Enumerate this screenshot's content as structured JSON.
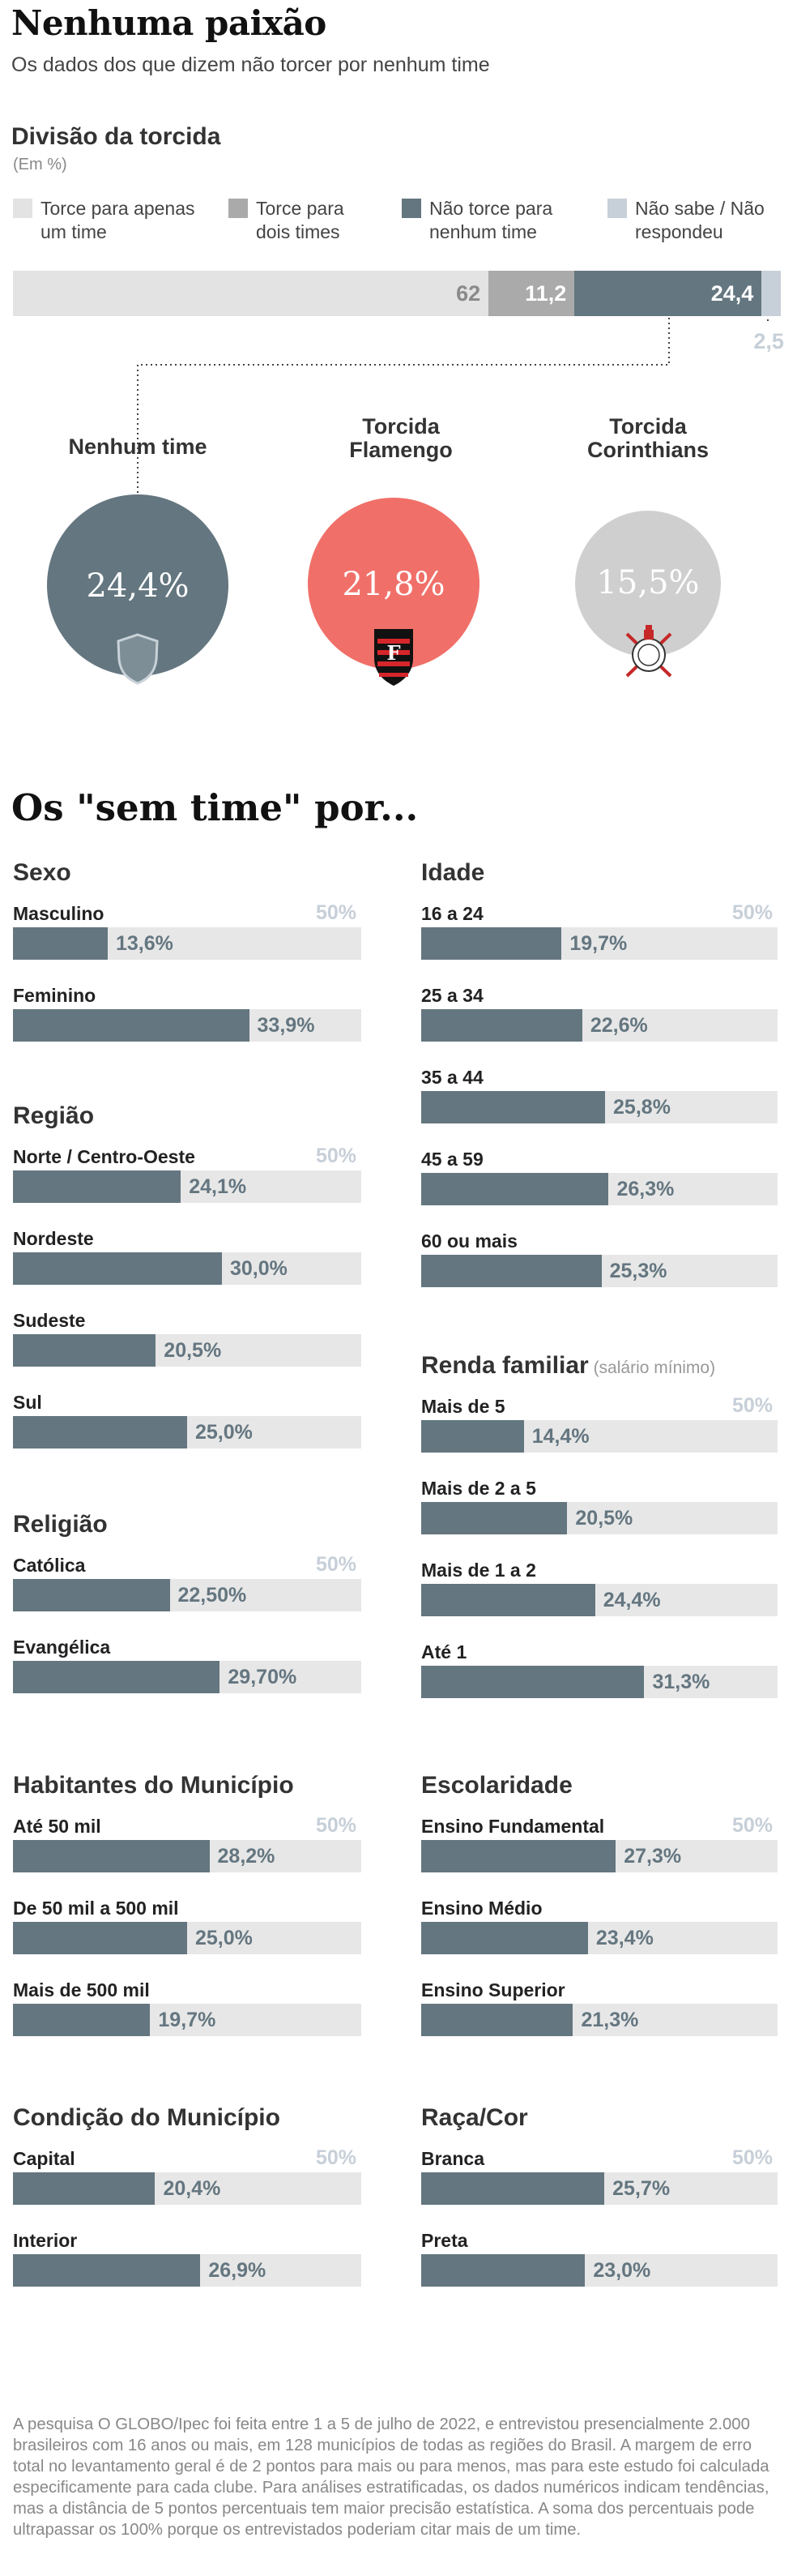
{
  "header": {
    "title": "Nenhuma paixão",
    "subtitle": "Os dados dos que dizem não torcer por nenhum time"
  },
  "division": {
    "title": "Divisão da torcida",
    "unit": "(Em %)",
    "legend": [
      {
        "label": "Torce para apenas um time",
        "color": "#e3e3e3"
      },
      {
        "label": "Torce para dois times",
        "color": "#aaaaaa"
      },
      {
        "label": "Não torce para nenhum time",
        "color": "#647680"
      },
      {
        "label": "Não sabe / Não respondeu",
        "color": "#c7d0d8"
      }
    ]
  },
  "circles": [
    {
      "label": "Nenhum time",
      "value": "24,4%",
      "color": "#647680",
      "icon": "shield-icon"
    },
    {
      "label": "Torcida Flamengo",
      "value": "21,8%",
      "color": "#f07069",
      "icon": "flamengo-crest-icon"
    },
    {
      "label": "Torcida Corinthians",
      "value": "15,5%",
      "color": "#cfcfcf",
      "icon": "corinthians-crest-icon"
    }
  ],
  "section_title": "Os \"sem time\" por...",
  "max_label": "50%",
  "groups": [
    {
      "title": "Sexo",
      "note": "",
      "rows": [
        {
          "label": "Masculino",
          "value": "13,6%"
        },
        {
          "label": "Feminino",
          "value": "33,9%"
        }
      ]
    },
    {
      "title": "Região",
      "note": "",
      "rows": [
        {
          "label": "Norte / Centro-Oeste",
          "value": "24,1%"
        },
        {
          "label": "Nordeste",
          "value": "30,0%"
        },
        {
          "label": "Sudeste",
          "value": "20,5%"
        },
        {
          "label": "Sul",
          "value": "25,0%"
        }
      ]
    },
    {
      "title": "Religião",
      "note": "",
      "rows": [
        {
          "label": "Católica",
          "value": "22,50%"
        },
        {
          "label": "Evangélica",
          "value": "29,70%"
        }
      ]
    },
    {
      "title": "Idade",
      "note": "",
      "rows": [
        {
          "label": "16 a 24",
          "value": "19,7%"
        },
        {
          "label": "25 a 34",
          "value": "22,6%"
        },
        {
          "label": "35 a 44",
          "value": "25,8%"
        },
        {
          "label": "45 a 59",
          "value": "26,3%"
        },
        {
          "label": "60 ou mais",
          "value": "25,3%"
        }
      ]
    },
    {
      "title": "Renda familiar",
      "note": "(salário mínimo)",
      "rows": [
        {
          "label": "Mais de 5",
          "value": "14,4%"
        },
        {
          "label": "Mais de 2 a 5",
          "value": "20,5%"
        },
        {
          "label": "Mais de 1 a 2",
          "value": "24,4%"
        },
        {
          "label": "Até 1",
          "value": "31,3%"
        }
      ]
    },
    {
      "title": "Habitantes do Município",
      "note": "",
      "rows": [
        {
          "label": "Até 50 mil",
          "value": "28,2%"
        },
        {
          "label": "De 50 mil a 500 mil",
          "value": "25,0%"
        },
        {
          "label": "Mais de 500 mil",
          "value": "19,7%"
        }
      ]
    },
    {
      "title": "Escolaridade",
      "note": "",
      "rows": [
        {
          "label": "Ensino Fundamental",
          "value": "27,3%"
        },
        {
          "label": "Ensino Médio",
          "value": "23,4%"
        },
        {
          "label": "Ensino Superior",
          "value": "21,3%"
        }
      ]
    },
    {
      "title": "Condição do Município",
      "note": "",
      "rows": [
        {
          "label": "Capital",
          "value": "20,4%"
        },
        {
          "label": "Interior",
          "value": "26,9%"
        }
      ]
    },
    {
      "title": "Raça/Cor",
      "note": "",
      "rows": [
        {
          "label": "Branca",
          "value": "25,7%"
        },
        {
          "label": "Preta",
          "value": "23,0%"
        }
      ]
    }
  ],
  "chart_data": [
    {
      "type": "bar",
      "title": "Divisão da torcida",
      "ylabel": "(Em %)",
      "stacked": true,
      "categories": [
        "Torce para apenas um time",
        "Torce para dois times",
        "Não torce para nenhum time",
        "Não sabe / Não respondeu"
      ],
      "values": [
        62,
        11.2,
        24.4,
        2.5
      ],
      "labels": [
        "62",
        "11,2",
        "24,4",
        "2,5"
      ]
    },
    {
      "type": "bar",
      "title": "Os \"sem time\" por... Sexo",
      "categories": [
        "Masculino",
        "Feminino"
      ],
      "values": [
        13.6,
        33.9
      ],
      "ylim": [
        0,
        50
      ]
    },
    {
      "type": "bar",
      "title": "Região",
      "categories": [
        "Norte / Centro-Oeste",
        "Nordeste",
        "Sudeste",
        "Sul"
      ],
      "values": [
        24.1,
        30.0,
        20.5,
        25.0
      ],
      "ylim": [
        0,
        50
      ]
    },
    {
      "type": "bar",
      "title": "Religião",
      "categories": [
        "Católica",
        "Evangélica"
      ],
      "values": [
        22.5,
        29.7
      ],
      "ylim": [
        0,
        50
      ]
    },
    {
      "type": "bar",
      "title": "Idade",
      "categories": [
        "16 a 24",
        "25 a 34",
        "35 a 44",
        "45 a 59",
        "60 ou mais"
      ],
      "values": [
        19.7,
        22.6,
        25.8,
        26.3,
        25.3
      ],
      "ylim": [
        0,
        50
      ]
    },
    {
      "type": "bar",
      "title": "Renda familiar (salário mínimo)",
      "categories": [
        "Mais de 5",
        "Mais de 2 a 5",
        "Mais de 1 a 2",
        "Até 1"
      ],
      "values": [
        14.4,
        20.5,
        24.4,
        31.3
      ],
      "ylim": [
        0,
        50
      ]
    },
    {
      "type": "bar",
      "title": "Habitantes do Município",
      "categories": [
        "Até 50 mil",
        "De 50 mil a 500 mil",
        "Mais de 500 mil"
      ],
      "values": [
        28.2,
        25.0,
        19.7
      ],
      "ylim": [
        0,
        50
      ]
    },
    {
      "type": "bar",
      "title": "Escolaridade",
      "categories": [
        "Ensino Fundamental",
        "Ensino Médio",
        "Ensino Superior"
      ],
      "values": [
        27.3,
        23.4,
        21.3
      ],
      "ylim": [
        0,
        50
      ]
    },
    {
      "type": "bar",
      "title": "Condição do Município",
      "categories": [
        "Capital",
        "Interior"
      ],
      "values": [
        20.4,
        26.9
      ],
      "ylim": [
        0,
        50
      ]
    },
    {
      "type": "bar",
      "title": "Raça/Cor",
      "categories": [
        "Branca",
        "Preta"
      ],
      "values": [
        25.7,
        23.0
      ],
      "ylim": [
        0,
        50
      ]
    }
  ],
  "footnote": "A pesquisa O GLOBO/Ipec foi feita entre 1 a 5 de julho de 2022, e entrevistou presencialmente 2.000 brasileiros com 16 anos ou mais, em 128 municípios de todas as regiões do Brasil. A margem de erro total no levantamento geral é de 2 pontos para mais ou para menos, mas para este estudo foi calculada especificamente para cada clube. Para análises estratificadas, os dados numéricos indicam tendências, mas a distância de 5 pontos percentuais tem maior precisão estatística. A soma dos percentuais pode ultrapassar os 100% porque os entrevistados poderiam citar mais de um time."
}
